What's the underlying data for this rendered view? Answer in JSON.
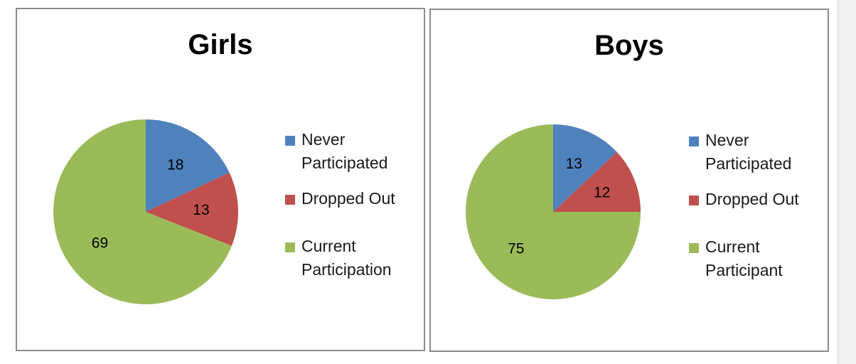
{
  "colors": {
    "never": "#4f81bd",
    "dropped": "#c0504d",
    "current": "#9bbb59"
  },
  "chart_data": [
    {
      "type": "pie",
      "title": "Girls",
      "categories": [
        "Never Participated",
        "Dropped Out",
        "Current Participation"
      ],
      "values": [
        18,
        13,
        69
      ],
      "labels": [
        "18",
        "13",
        "69"
      ],
      "legend": "right",
      "start_angle_deg": 0,
      "direction": "clockwise"
    },
    {
      "type": "pie",
      "title": "Boys",
      "categories": [
        "Never Participated",
        "Dropped Out",
        "Current Participant"
      ],
      "values": [
        13,
        12,
        75
      ],
      "labels": [
        "13",
        "12",
        "75"
      ],
      "legend": "right",
      "start_angle_deg": 0,
      "direction": "clockwise"
    }
  ]
}
